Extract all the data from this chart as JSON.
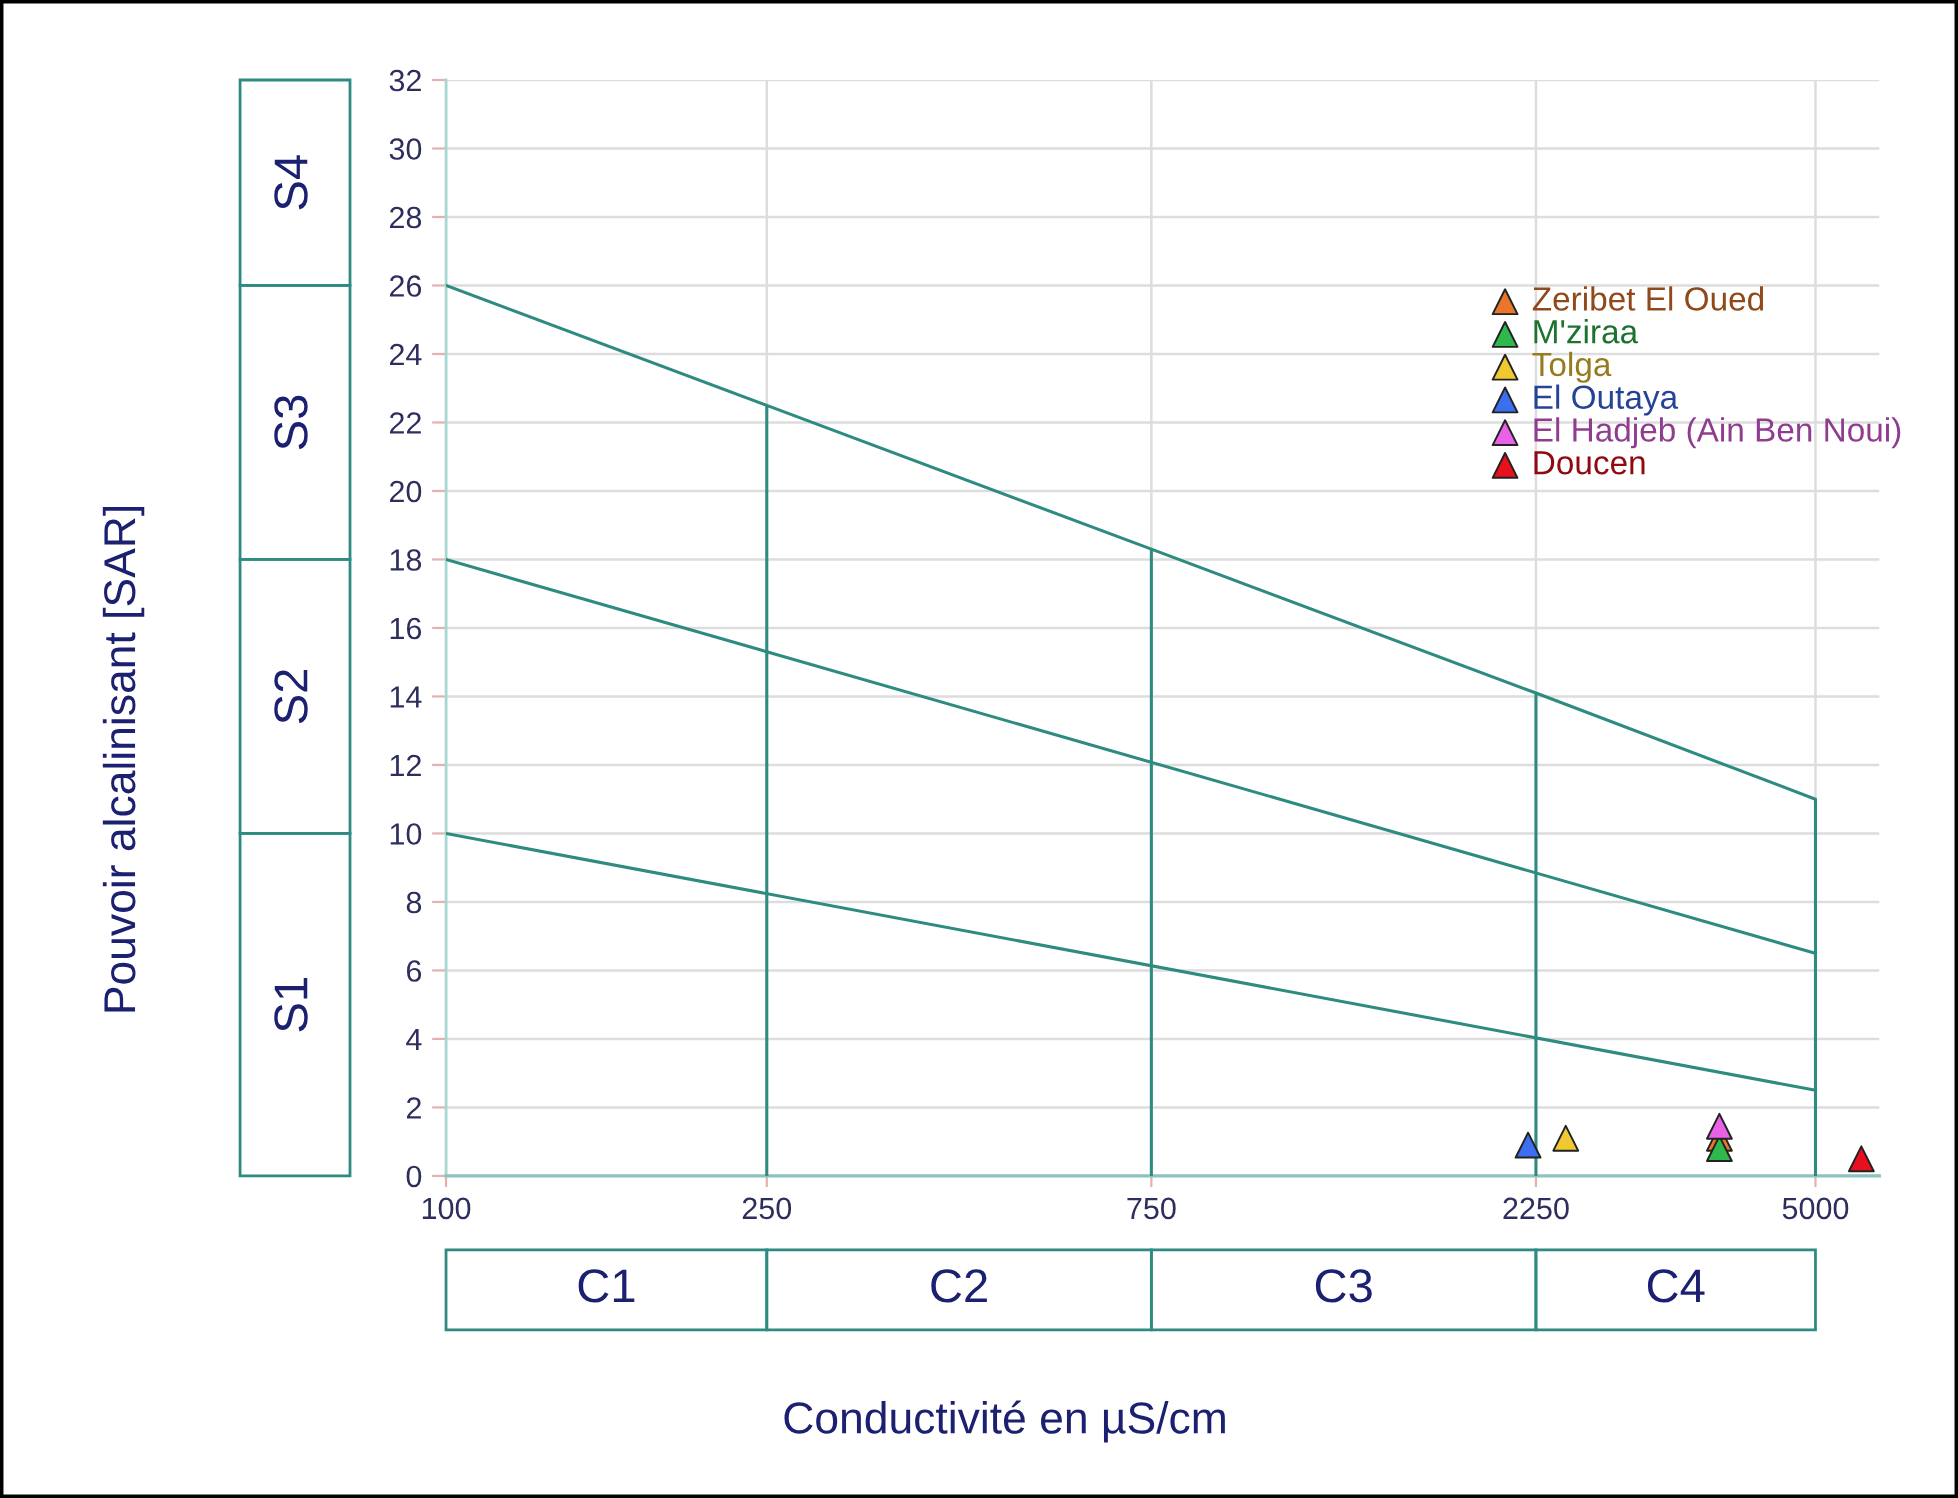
{
  "chart_data": {
    "type": "scatter",
    "xlabel": "Conductivité en µS/cm",
    "log": "x",
    "xlim": [
      100,
      6000
    ],
    "xticks": [
      100,
      250,
      750,
      2250,
      5000
    ],
    "ylim": [
      0,
      32
    ],
    "yticks": [
      0,
      2,
      4,
      6,
      8,
      10,
      12,
      14,
      16,
      18,
      20,
      22,
      24,
      26,
      28,
      30,
      32
    ],
    "grid": true,
    "legend": "top right",
    "marker": "triangle",
    "series": [
      {
        "name": "Zeribet El Oued",
        "color": "#e8762c",
        "x": [
          3800
        ],
        "values": [
          1.1
        ]
      },
      {
        "name": "M'ziraa",
        "color": "#2fb84c",
        "x": [
          3800
        ],
        "values": [
          0.8
        ]
      },
      {
        "name": "Tolga",
        "color": "#f0c832",
        "x": [
          2450
        ],
        "values": [
          1.1
        ]
      },
      {
        "name": "El Outaya",
        "color": "#3c6ef0",
        "x": [
          2200
        ],
        "values": [
          0.9
        ]
      },
      {
        "name": "El Hadjeb (Ain Ben Noui)",
        "color": "#e862e8",
        "x": [
          3800
        ],
        "values": [
          1.45
        ]
      },
      {
        "name": "Doucen",
        "color": "#e8101c",
        "x": [
          5700
        ],
        "values": [
          0.5
        ]
      },
      {
        "type": "line",
        "marker": "none",
        "color": "#2e8b80",
        "x": [
          100,
          5000
        ],
        "values": [
          10,
          2.5
        ]
      },
      {
        "type": "line",
        "marker": "none",
        "color": "#2e8b80",
        "x": [
          100,
          5000
        ],
        "values": [
          18,
          6.5
        ]
      },
      {
        "type": "line",
        "marker": "none",
        "color": "#2e8b80",
        "x": [
          100,
          250,
          250,
          250,
          750,
          750,
          750,
          2250,
          2250,
          2250,
          5000,
          5000
        ],
        "values": [
          26,
          22.5,
          0,
          22.5,
          18.3,
          0,
          18.3,
          14.1,
          0,
          14.1,
          11,
          0
        ]
      }
    ],
    "annotations": [
      "S1",
      "S2",
      "S3",
      "S4",
      "C1",
      "C2",
      "C3",
      "C4",
      "Pouvoir alcalinisant [SAR]"
    ]
  }
}
